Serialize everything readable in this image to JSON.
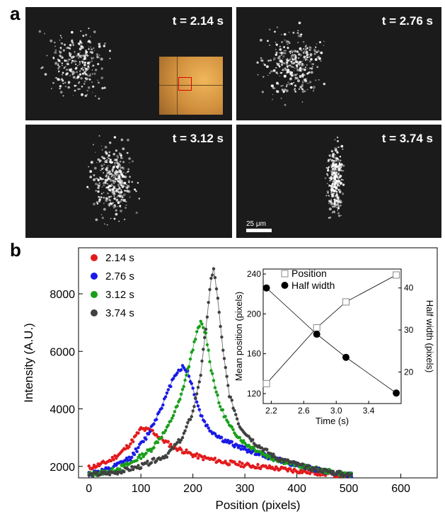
{
  "panel_a": {
    "label": "a",
    "frames": [
      {
        "time": "t = 2.14 s"
      },
      {
        "time": "t = 2.76 s"
      },
      {
        "time": "t = 3.12 s"
      },
      {
        "time": "t = 3.74 s"
      }
    ],
    "scale_bar": "25 μm"
  },
  "panel_b": {
    "label": "b"
  },
  "chart_data": [
    {
      "type": "line",
      "xlabel": "Position (pixels)",
      "ylabel": "Intensity (A.U.)",
      "xlim": [
        -20,
        670
      ],
      "ylim": [
        1600,
        9600
      ],
      "xticks": [
        0,
        100,
        200,
        300,
        400,
        500,
        600
      ],
      "yticks": [
        2000,
        4000,
        6000,
        8000
      ],
      "legend_position": "top-left",
      "series": [
        {
          "name": "2.14 s",
          "color": "#e31a1c",
          "x": [
            0,
            20,
            40,
            60,
            80,
            100,
            120,
            140,
            160,
            180,
            200,
            220,
            260,
            300,
            350,
            400,
            450,
            505
          ],
          "y": [
            1950,
            2050,
            2200,
            2450,
            2800,
            3300,
            3250,
            2950,
            2700,
            2550,
            2400,
            2300,
            2150,
            2050,
            1950,
            1850,
            1750,
            1680
          ]
        },
        {
          "name": "2.76 s",
          "color": "#1a1ae6",
          "x": [
            0,
            40,
            80,
            110,
            130,
            150,
            165,
            180,
            190,
            200,
            215,
            230,
            260,
            300,
            350,
            400,
            450,
            505
          ],
          "y": [
            1750,
            1900,
            2300,
            3000,
            3700,
            4500,
            5200,
            5450,
            5300,
            4700,
            3800,
            3300,
            2900,
            2600,
            2300,
            2050,
            1850,
            1700
          ]
        },
        {
          "name": "3.12 s",
          "color": "#1a9e1a",
          "x": [
            0,
            40,
            80,
            120,
            150,
            175,
            195,
            205,
            215,
            225,
            235,
            250,
            270,
            300,
            350,
            400,
            450,
            505
          ],
          "y": [
            1720,
            1820,
            2100,
            2600,
            3300,
            4300,
            5700,
            6500,
            7000,
            6600,
            5400,
            4200,
            3400,
            2800,
            2300,
            2050,
            1850,
            1700
          ]
        },
        {
          "name": "3.74 s",
          "color": "#404040",
          "x": [
            0,
            50,
            100,
            150,
            180,
            200,
            215,
            225,
            235,
            240,
            248,
            258,
            270,
            290,
            320,
            360,
            420,
            505
          ],
          "y": [
            1700,
            1780,
            2000,
            2400,
            3000,
            3900,
            5200,
            6800,
            8500,
            8900,
            7800,
            6000,
            4500,
            3400,
            2800,
            2300,
            1950,
            1680
          ]
        }
      ]
    },
    {
      "type": "scatter",
      "xlabel": "Time (s)",
      "ylabel": "Mean position (pixels)",
      "y2label": "Half width (pixels)",
      "xlim": [
        2.1,
        3.8
      ],
      "ylim": [
        110,
        245
      ],
      "y2lim": [
        12.5,
        44.5
      ],
      "xticks": [
        2.2,
        2.6,
        3.0,
        3.4
      ],
      "yticks": [
        120,
        160,
        200,
        240
      ],
      "y2ticks": [
        20,
        30,
        40
      ],
      "legend_position": "top-right",
      "series": [
        {
          "name": "Position",
          "marker": "open-square",
          "axis": "left",
          "x": [
            2.14,
            2.76,
            3.12,
            3.74
          ],
          "y": [
            130,
            186,
            212,
            239
          ]
        },
        {
          "name": "Half width",
          "marker": "filled-circle",
          "axis": "right",
          "x": [
            2.14,
            2.76,
            3.12,
            3.74
          ],
          "y": [
            40,
            29,
            23.5,
            15
          ]
        }
      ]
    }
  ]
}
